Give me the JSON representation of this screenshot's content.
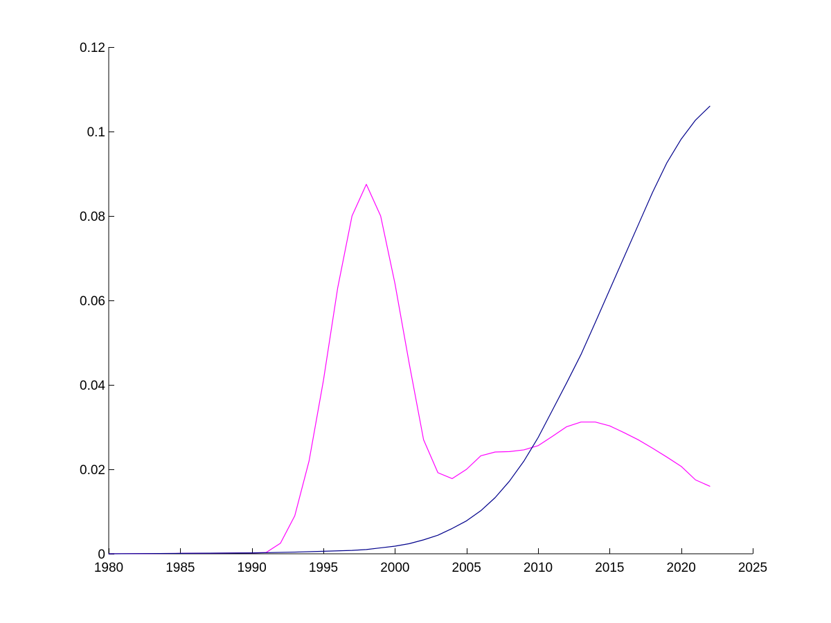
{
  "chart_data": {
    "type": "line",
    "title": "",
    "xlabel": "",
    "ylabel": "",
    "xlim": [
      1980,
      2025
    ],
    "ylim": [
      0,
      0.12
    ],
    "grid": false,
    "x_ticks": [
      1980,
      1985,
      1990,
      1995,
      2000,
      2005,
      2010,
      2015,
      2020,
      2025
    ],
    "y_ticks": [
      0,
      0.02,
      0.04,
      0.06,
      0.08,
      0.1,
      0.12
    ],
    "x_tick_labels": [
      "1980",
      "1985",
      "1990",
      "1995",
      "2000",
      "2005",
      "2010",
      "2015",
      "2020",
      "2025"
    ],
    "y_tick_labels": [
      "0",
      "0.02",
      "0.04",
      "0.06",
      "0.08",
      "0.1",
      "0.12"
    ],
    "series": [
      {
        "color": "#ff00ff",
        "x": [
          1980,
          1985,
          1990,
          1991,
          1992,
          1993,
          1994,
          1995,
          1996,
          1997,
          1998,
          1999,
          2000,
          2001,
          2002,
          2003,
          2004,
          2005,
          2006,
          2007,
          2008,
          2009,
          2010,
          2011,
          2012,
          2013,
          2014,
          2015,
          2016,
          2017,
          2018,
          2019,
          2020,
          2021,
          2022
        ],
        "y": [
          0,
          0.0001,
          0.0002,
          0.0003,
          0.0025,
          0.009,
          0.022,
          0.041,
          0.063,
          0.08,
          0.0875,
          0.08,
          0.064,
          0.045,
          0.027,
          0.0192,
          0.0178,
          0.02,
          0.0232,
          0.0241,
          0.0242,
          0.0246,
          0.0256,
          0.0278,
          0.0301,
          0.0312,
          0.0312,
          0.0303,
          0.0287,
          0.027,
          0.025,
          0.0229,
          0.0207,
          0.0175,
          0.016
        ]
      },
      {
        "color": "#00008b",
        "x": [
          1980,
          1985,
          1990,
          1993,
          1995,
          1997,
          1998,
          1999,
          2000,
          2001,
          2002,
          2003,
          2004,
          2005,
          2006,
          2007,
          2008,
          2009,
          2010,
          2011,
          2012,
          2013,
          2014,
          2015,
          2016,
          2017,
          2018,
          2019,
          2020,
          2021,
          2022
        ],
        "y": [
          0,
          0.0001,
          0.0002,
          0.0004,
          0.0006,
          0.0008,
          0.001,
          0.0014,
          0.0018,
          0.0024,
          0.0033,
          0.0044,
          0.006,
          0.0078,
          0.0102,
          0.0133,
          0.0172,
          0.0219,
          0.0275,
          0.034,
          0.0405,
          0.0472,
          0.0548,
          0.0625,
          0.0702,
          0.0779,
          0.0856,
          0.0926,
          0.0982,
          0.1027,
          0.106
        ]
      }
    ]
  }
}
